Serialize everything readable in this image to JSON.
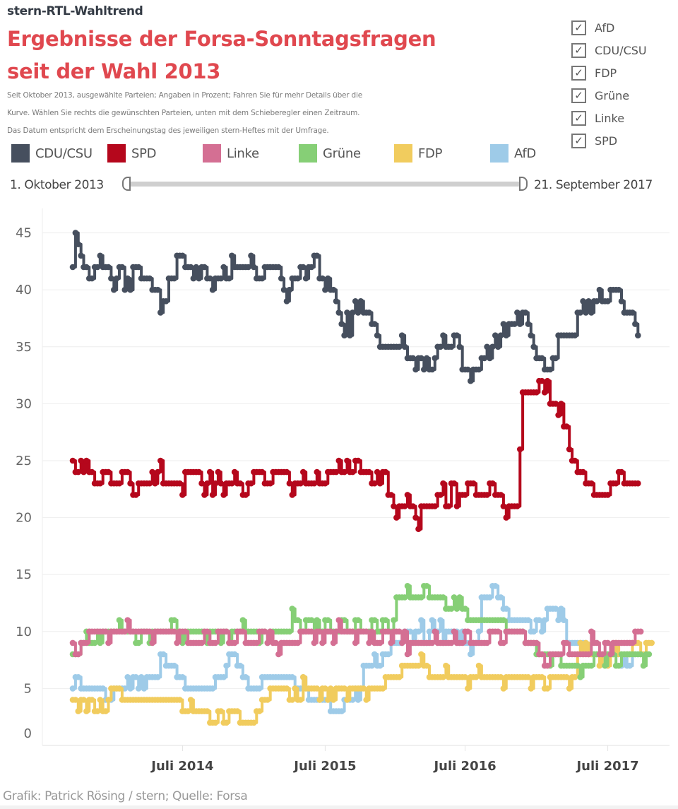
{
  "header": {
    "kicker": "stern-RTL-Wahltrend",
    "title_line1": "Ergebnisse der Forsa-Sonntagsfragen",
    "title_line2": "seit der Wahl 2013",
    "description": [
      "Seit Oktober 2013, ausgewählte Parteien; Angaben in Prozent; Fahren Sie für mehr Details über die",
      "Kurve. Wählen Sie rechts die  gewünschten Parteien, unten mit dem Schieberegler einen Zeitraum.",
      "Das Datum entspricht dem Erscheinungstag des jeweiligen stern-Heftes mit der Umfrage."
    ]
  },
  "filters": [
    {
      "label": "AfD",
      "checked": true
    },
    {
      "label": "CDU/CSU",
      "checked": true
    },
    {
      "label": "FDP",
      "checked": true
    },
    {
      "label": "Grüne",
      "checked": true
    },
    {
      "label": "Linke",
      "checked": true
    },
    {
      "label": "SPD",
      "checked": true
    }
  ],
  "checkmark_glyph": "✓",
  "legend": [
    {
      "label": "CDU/CSU",
      "color": "#464f5e"
    },
    {
      "label": "SPD",
      "color": "#b5071c"
    },
    {
      "label": "Linke",
      "color": "#d46f93"
    },
    {
      "label": "Grüne",
      "color": "#86cf76"
    },
    {
      "label": "FDP",
      "color": "#f1cc5e"
    },
    {
      "label": "AfD",
      "color": "#9ecbe8"
    }
  ],
  "slider": {
    "start_label": "1. Oktober 2013",
    "end_label": "21. September 2017"
  },
  "footer": "Grafik: Patrick Rösing / stern; Quelle: Forsa",
  "chart_data": {
    "type": "line",
    "title": "Ergebnisse der Forsa-Sonntagsfragen seit der Wahl 2013",
    "xlabel": "",
    "ylabel": "Prozent",
    "x_range": [
      "2013-10-01",
      "2017-09-21"
    ],
    "x_unit": "week index from 2013-10-01 (weekly polls)",
    "x_ticks": [
      {
        "label": "Juli 2014",
        "week": 40
      },
      {
        "label": "Juli 2015",
        "week": 92
      },
      {
        "label": "Juli 2016",
        "week": 143
      },
      {
        "label": "Juli 2017",
        "week": 195
      }
    ],
    "y_ticks": [
      0,
      5,
      10,
      15,
      20,
      25,
      30,
      35,
      40,
      45
    ],
    "ylim": [
      0,
      46
    ],
    "grid": "horizontal",
    "legend_position": "top",
    "series": [
      {
        "name": "CDU/CSU",
        "color": "#464f5e",
        "values": [
          42,
          45,
          44,
          43,
          42,
          42,
          41,
          41,
          42,
          42,
          43,
          42,
          42,
          42,
          41,
          40,
          41,
          42,
          42,
          40,
          41,
          40,
          42,
          42,
          42,
          41,
          41,
          41,
          41,
          40,
          40,
          40,
          38,
          39,
          39,
          41,
          41,
          41,
          43,
          43,
          43,
          42,
          42,
          42,
          41,
          42,
          41,
          42,
          42,
          41,
          41,
          40,
          41,
          41,
          41,
          42,
          41,
          41,
          43,
          42,
          42,
          42,
          42,
          42,
          42,
          43,
          42,
          41,
          41,
          41,
          42,
          42,
          42,
          42,
          42,
          42,
          41,
          40,
          39,
          40,
          41,
          41,
          41,
          42,
          42,
          41,
          42,
          42,
          43,
          43,
          41,
          41,
          40,
          41,
          40,
          40,
          39,
          38,
          37,
          36,
          38,
          36,
          38,
          39,
          38,
          39,
          38,
          38,
          38,
          37,
          37,
          36,
          35,
          35,
          35,
          35,
          35,
          35,
          35,
          35,
          36,
          35,
          34,
          34,
          34,
          33,
          34,
          34,
          33,
          34,
          33,
          33,
          34,
          35,
          35,
          36,
          35,
          35,
          35,
          36,
          36,
          35,
          33,
          33,
          33,
          32,
          33,
          33,
          33,
          34,
          34,
          35,
          34,
          35,
          36,
          35,
          36,
          37,
          36,
          37,
          37,
          37,
          38,
          37,
          38,
          38,
          37,
          36,
          35,
          34,
          34,
          34,
          33,
          33,
          33,
          34,
          34,
          36,
          36,
          36,
          36,
          36,
          36,
          36,
          38,
          38,
          39,
          38,
          39,
          38,
          39,
          39,
          40,
          39,
          39,
          39,
          40,
          40,
          40,
          40,
          39,
          38,
          38,
          38,
          38,
          37,
          36
        ]
      },
      {
        "name": "SPD",
        "color": "#b5071c",
        "values": [
          25,
          24,
          24,
          25,
          24,
          25,
          24,
          24,
          23,
          23,
          23,
          24,
          24,
          24,
          23,
          23,
          23,
          23,
          24,
          24,
          24,
          23,
          22,
          22,
          23,
          23,
          23,
          23,
          23,
          24,
          23,
          24,
          25,
          23,
          23,
          23,
          23,
          23,
          23,
          23,
          22,
          24,
          24,
          24,
          24,
          24,
          24,
          23,
          22,
          23,
          24,
          22,
          23,
          24,
          23,
          22,
          23,
          23,
          23,
          24,
          23,
          23,
          22,
          22,
          23,
          23,
          24,
          24,
          24,
          24,
          23,
          23,
          23,
          24,
          24,
          24,
          24,
          24,
          24,
          23,
          22,
          23,
          23,
          23,
          24,
          23,
          23,
          23,
          23,
          24,
          23,
          23,
          23,
          24,
          24,
          24,
          24,
          25,
          24,
          24,
          25,
          24,
          24,
          25,
          25,
          24,
          24,
          24,
          24,
          23,
          23,
          24,
          23,
          24,
          24,
          22,
          22,
          21,
          20,
          21,
          21,
          21,
          22,
          21,
          21,
          20,
          19,
          21,
          21,
          21,
          21,
          21,
          21,
          22,
          22,
          23,
          21,
          21,
          23,
          23,
          21,
          22,
          22,
          22,
          23,
          23,
          23,
          22,
          22,
          22,
          22,
          22,
          23,
          23,
          22,
          22,
          22,
          21,
          20,
          21,
          21,
          21,
          21,
          26,
          31,
          31,
          31,
          31,
          31,
          31,
          32,
          32,
          31,
          32,
          30,
          30,
          30,
          29,
          30,
          28,
          28,
          26,
          25,
          25,
          24,
          24,
          24,
          23,
          23,
          23,
          22,
          22,
          22,
          22,
          22,
          22,
          23,
          23,
          23,
          24,
          24,
          23,
          23,
          23,
          23,
          23,
          23
        ]
      },
      {
        "name": "Linke",
        "color": "#d46f93",
        "values": [
          9,
          8,
          8,
          9,
          9,
          9,
          10,
          10,
          10,
          10,
          10,
          10,
          10,
          9,
          10,
          10,
          10,
          10,
          10,
          10,
          11,
          10,
          10,
          10,
          10,
          10,
          10,
          10,
          10,
          9,
          10,
          10,
          10,
          10,
          10,
          10,
          10,
          10,
          9,
          10,
          10,
          10,
          9,
          9,
          9,
          9,
          9,
          9,
          10,
          10,
          9,
          9,
          9,
          10,
          10,
          10,
          10,
          9,
          9,
          9,
          10,
          10,
          10,
          9,
          9,
          9,
          9,
          9,
          10,
          10,
          10,
          9,
          10,
          9,
          9,
          8,
          9,
          9,
          9,
          9,
          9,
          9,
          9,
          10,
          10,
          10,
          10,
          10,
          9,
          10,
          10,
          9,
          10,
          10,
          10,
          9,
          10,
          11,
          10,
          10,
          10,
          10,
          10,
          9,
          10,
          10,
          10,
          10,
          9,
          10,
          9,
          9,
          9,
          10,
          10,
          10,
          9,
          10,
          10,
          10,
          9,
          10,
          8,
          9,
          9,
          9,
          9,
          9,
          9,
          9,
          9,
          9,
          10,
          9,
          9,
          9,
          9,
          9,
          9,
          10,
          9,
          9,
          9,
          10,
          10,
          9,
          9,
          9,
          9,
          9,
          9,
          9,
          10,
          10,
          10,
          10,
          9,
          9,
          10,
          10,
          10,
          10,
          10,
          10,
          10,
          9,
          9,
          9,
          9,
          9,
          8,
          8,
          7,
          7,
          8,
          8,
          8,
          8,
          8,
          9,
          9,
          8,
          8,
          8,
          8,
          8,
          8,
          8,
          8,
          10,
          9,
          9,
          8,
          8,
          9,
          9,
          8,
          9,
          9,
          9,
          9,
          9,
          9,
          9,
          9,
          10,
          10,
          10
        ]
      },
      {
        "name": "Grüne",
        "color": "#86cf76",
        "values": [
          8,
          8,
          8,
          9,
          9,
          10,
          9,
          9,
          9,
          10,
          9,
          10,
          10,
          10,
          10,
          10,
          10,
          11,
          10,
          10,
          10,
          10,
          10,
          9,
          9,
          10,
          10,
          10,
          9,
          10,
          10,
          10,
          10,
          10,
          10,
          10,
          11,
          11,
          10,
          10,
          9,
          10,
          10,
          10,
          10,
          10,
          10,
          10,
          10,
          9,
          10,
          10,
          10,
          10,
          9,
          10,
          10,
          9,
          10,
          10,
          10,
          10,
          11,
          10,
          10,
          10,
          10,
          10,
          9,
          10,
          10,
          9,
          10,
          10,
          10,
          10,
          10,
          10,
          10,
          10,
          12,
          11,
          11,
          10,
          10,
          11,
          11,
          11,
          10,
          11,
          10,
          10,
          11,
          11,
          10,
          10,
          10,
          10,
          11,
          11,
          10,
          10,
          10,
          11,
          11,
          10,
          10,
          10,
          10,
          11,
          11,
          10,
          10,
          11,
          11,
          10,
          10,
          11,
          13,
          13,
          13,
          13,
          14,
          13,
          13,
          13,
          13,
          13,
          14,
          14,
          13,
          13,
          13,
          13,
          13,
          13,
          12,
          12,
          12,
          13,
          12,
          13,
          12,
          12,
          11,
          11,
          11,
          11,
          11,
          11,
          11,
          11,
          11,
          11,
          11,
          11,
          11,
          11,
          10,
          10,
          10,
          10,
          10,
          10,
          10,
          9,
          9,
          9,
          9,
          8,
          8,
          8,
          8,
          8,
          7,
          8,
          8,
          8,
          7,
          7,
          7,
          7,
          7,
          7,
          7,
          6,
          7,
          7,
          7,
          7,
          8,
          8,
          8,
          8,
          7,
          8,
          8,
          8,
          7,
          7,
          8,
          8,
          8,
          8,
          8,
          8,
          8,
          8,
          7,
          8,
          8
        ]
      },
      {
        "name": "FDP",
        "color": "#f1cc5e",
        "values": [
          4,
          4,
          3,
          4,
          4,
          3,
          4,
          4,
          3,
          3,
          4,
          3,
          3,
          4,
          5,
          5,
          5,
          5,
          4,
          4,
          4,
          4,
          4,
          4,
          4,
          4,
          4,
          4,
          4,
          4,
          4,
          4,
          4,
          4,
          4,
          4,
          4,
          4,
          4,
          4,
          3,
          3,
          3,
          4,
          3,
          3,
          3,
          3,
          3,
          3,
          2,
          2,
          2,
          3,
          3,
          2,
          2,
          3,
          3,
          3,
          3,
          2,
          2,
          2,
          2,
          2,
          2,
          3,
          3,
          4,
          4,
          4,
          5,
          5,
          5,
          5,
          5,
          5,
          5,
          4,
          4,
          5,
          4,
          4,
          6,
          5,
          5,
          5,
          5,
          5,
          4,
          5,
          5,
          4,
          5,
          4,
          5,
          5,
          5,
          5,
          4,
          5,
          5,
          5,
          5,
          5,
          5,
          4,
          5,
          5,
          5,
          5,
          5,
          5,
          6,
          6,
          6,
          6,
          6,
          6,
          7,
          7,
          7,
          7,
          7,
          7,
          7,
          8,
          7,
          7,
          6,
          6,
          6,
          6,
          6,
          6,
          7,
          6,
          6,
          6,
          6,
          6,
          6,
          6,
          5,
          6,
          6,
          6,
          7,
          6,
          6,
          6,
          6,
          6,
          6,
          6,
          6,
          5,
          6,
          6,
          6,
          6,
          6,
          6,
          6,
          6,
          6,
          5,
          6,
          6,
          6,
          6,
          5,
          5,
          6,
          6,
          6,
          6,
          6,
          6,
          6,
          5,
          6,
          6,
          8,
          9,
          8,
          9,
          8,
          8,
          8,
          8,
          7,
          8,
          8,
          7,
          8,
          8,
          9,
          8,
          8,
          8,
          8,
          8,
          9,
          9,
          9,
          8,
          8,
          9,
          9,
          9
        ]
      },
      {
        "name": "AfD",
        "color": "#9ecbe8",
        "values": [
          5,
          6,
          6,
          5,
          5,
          5,
          5,
          5,
          5,
          5,
          5,
          5,
          4,
          4,
          4,
          5,
          5,
          5,
          5,
          5,
          6,
          5,
          6,
          6,
          5,
          6,
          5,
          6,
          6,
          6,
          6,
          6,
          8,
          8,
          7,
          7,
          7,
          7,
          6,
          6,
          6,
          5,
          5,
          5,
          5,
          5,
          5,
          5,
          5,
          5,
          5,
          5,
          6,
          6,
          6,
          6,
          7,
          8,
          8,
          8,
          7,
          7,
          6,
          6,
          5,
          5,
          5,
          5,
          5,
          6,
          6,
          6,
          6,
          6,
          6,
          6,
          6,
          6,
          6,
          6,
          6,
          5,
          5,
          5,
          6,
          5,
          4,
          4,
          4,
          4,
          4,
          4,
          4,
          4,
          3,
          3,
          3,
          3,
          3,
          4,
          4,
          4,
          4,
          5,
          4,
          5,
          7,
          7,
          7,
          7,
          8,
          7,
          7,
          8,
          8,
          8,
          9,
          9,
          9,
          9,
          9,
          10,
          10,
          10,
          9,
          10,
          10,
          11,
          9,
          9,
          10,
          11,
          10,
          10,
          11,
          9,
          10,
          10,
          10,
          10,
          10,
          9,
          10,
          9,
          9,
          8,
          9,
          9,
          10,
          13,
          13,
          13,
          13,
          14,
          14,
          13,
          13,
          12,
          12,
          11,
          11,
          11,
          11,
          11,
          11,
          11,
          11,
          10,
          10,
          11,
          11,
          10,
          11,
          12,
          12,
          12,
          12,
          11,
          12,
          11,
          9,
          9,
          9,
          9,
          9,
          9,
          9,
          9,
          8,
          8,
          8,
          8,
          8,
          8,
          8,
          8,
          8,
          8,
          8,
          8,
          7,
          8,
          7,
          7,
          8,
          8,
          8,
          8,
          8,
          8,
          8
        ]
      }
    ]
  }
}
